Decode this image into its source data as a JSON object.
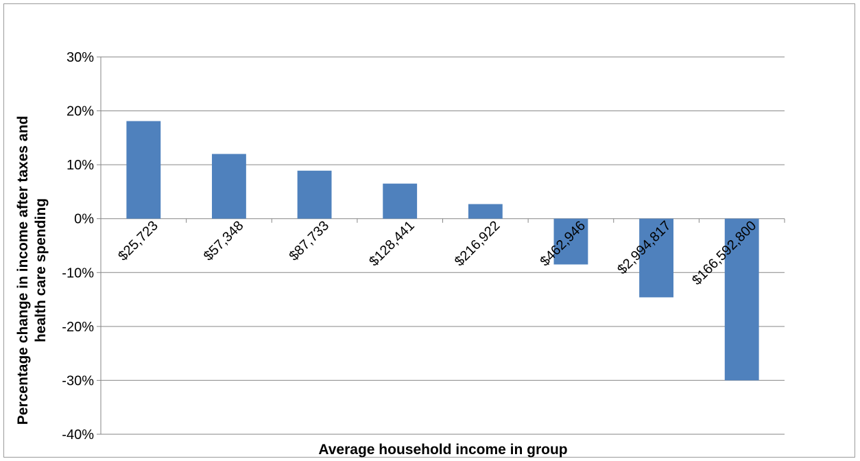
{
  "chart_data": {
    "type": "bar",
    "title": "",
    "xlabel": "Average household income in group",
    "ylabel_lines": [
      "Percentage change in income after taxes and",
      "health care spending"
    ],
    "categories": [
      "$25,723",
      "$57,348",
      "$87,733",
      "$128,441",
      "$216,922",
      "$462,946",
      "$2,994,817",
      "$166,592,800"
    ],
    "series": [
      {
        "values": [
          18.1,
          12.0,
          8.9,
          6.5,
          2.7,
          -8.5,
          -14.6,
          -30.0
        ]
      }
    ],
    "ylim": [
      -40,
      30
    ],
    "yticks": [
      -40,
      -30,
      -20,
      -10,
      0,
      10,
      20,
      30
    ],
    "ytick_labels": [
      "-40%",
      "-30%",
      "-20%",
      "-10%",
      "0%",
      "10%",
      "20%",
      "30%"
    ],
    "grid": true,
    "legend": "none",
    "bar_color": "#4f81bd"
  }
}
